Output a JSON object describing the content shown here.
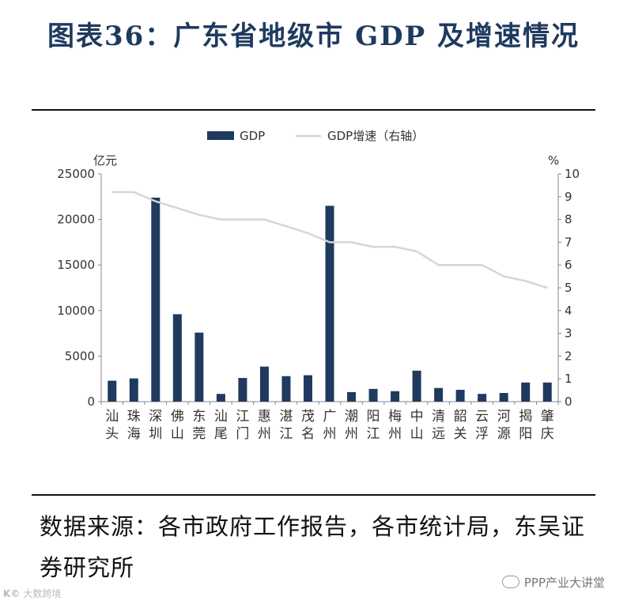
{
  "title": "图表36：广东省地级市 GDP 及增速情况",
  "source_text": "数据来源：各市政府工作报告，各市统计局，东吴证券研究所",
  "watermark_right": "PPP产业大讲堂",
  "watermark_left": "大数跨境",
  "watermark_left_mark": "K©",
  "colors": {
    "title": "#1f3a5f",
    "bar": "#1f3a5f",
    "line": "#d3d6db",
    "axis": "#888888",
    "text": "#333333"
  },
  "chart_data": {
    "type": "bar",
    "categories": [
      "汕头",
      "珠海",
      "深圳",
      "佛山",
      "东莞",
      "汕尾",
      "江门",
      "惠州",
      "湛江",
      "茂名",
      "广州",
      "潮州",
      "阳江",
      "梅州",
      "中山",
      "清远",
      "韶关",
      "云浮",
      "河源",
      "揭阳",
      "肇庆"
    ],
    "series": [
      {
        "name": "GDP",
        "type": "bar",
        "axis": "left",
        "values": [
          2300,
          2550,
          22400,
          9600,
          7580,
          850,
          2600,
          3850,
          2800,
          2900,
          21500,
          1050,
          1400,
          1150,
          3400,
          1500,
          1300,
          850,
          950,
          2100,
          2100
        ]
      },
      {
        "name": "GDP增速（右轴）",
        "type": "line",
        "axis": "right",
        "values": [
          9.2,
          9.2,
          8.8,
          8.5,
          8.2,
          8.0,
          8.0,
          8.0,
          7.7,
          7.4,
          7.0,
          7.0,
          6.8,
          6.8,
          6.6,
          6.0,
          6.0,
          6.0,
          5.5,
          5.3,
          5.0
        ]
      }
    ],
    "ylabel_left": "亿元",
    "ylabel_right": "%",
    "ylim_left": [
      0,
      25000
    ],
    "ylim_right": [
      0,
      10
    ],
    "yticks_left": [
      0,
      5000,
      10000,
      15000,
      20000,
      25000
    ],
    "yticks_right": [
      0,
      1,
      2,
      3,
      4,
      5,
      6,
      7,
      8,
      9,
      10
    ],
    "legend_position": "top",
    "grid": false
  }
}
